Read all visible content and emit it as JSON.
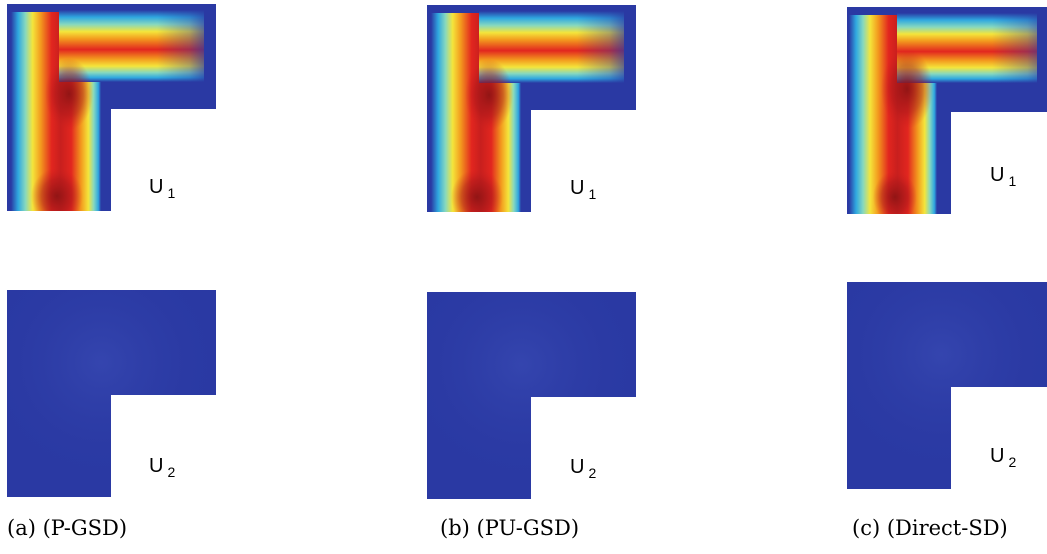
{
  "figure": {
    "columns": [
      {
        "caption": "(a) (P-GSD)",
        "modes": [
          {
            "label": "U",
            "subscript": "1"
          },
          {
            "label": "U",
            "subscript": "2"
          }
        ]
      },
      {
        "caption": "(b) (PU-GSD)",
        "modes": [
          {
            "label": "U",
            "subscript": "1"
          },
          {
            "label": "U",
            "subscript": "2"
          }
        ]
      },
      {
        "caption": "(c) (Direct-SD)",
        "modes": [
          {
            "label": "U",
            "subscript": "1"
          },
          {
            "label": "U",
            "subscript": "2"
          }
        ]
      }
    ],
    "colormap": [
      "#1f2f8c",
      "#27a6dc",
      "#7fd6c3",
      "#f3e43a",
      "#f4a31e",
      "#e3261f",
      "#b5191b"
    ]
  }
}
